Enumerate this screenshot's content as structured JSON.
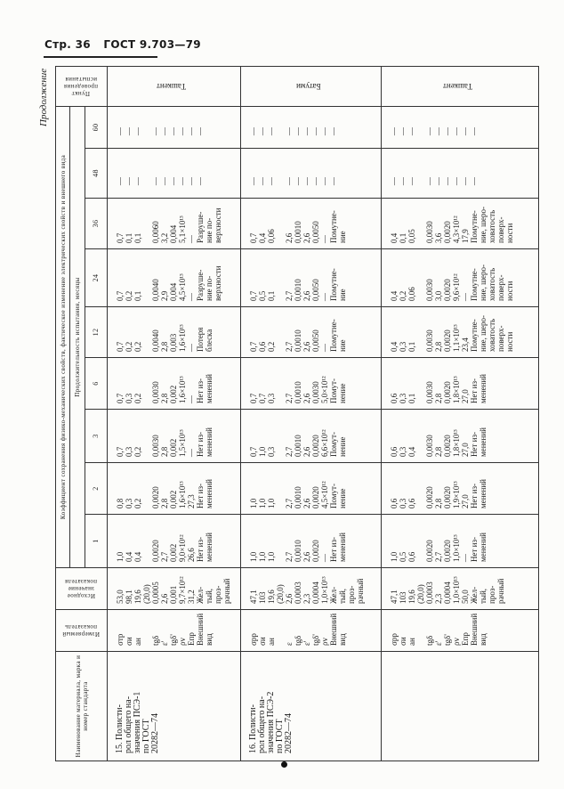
{
  "page_header": {
    "page": "Стр. 36",
    "standard": "ГОСТ 9.703—79"
  },
  "continuation_label": "Продолжение",
  "table": {
    "headers": {
      "name": "Наименование материала, марка и номер стандарта",
      "indicator": "Измеряемый показатель",
      "initial": "Исходное значение показателя",
      "coefficient": "Коэффициент сохранения физико-механических свойств, фактическое изменение электрических свойств и внешнего вида",
      "duration": "Продолжительность испытания, месяцы",
      "months": [
        "1",
        "2",
        "3",
        "6",
        "12",
        "24",
        "36",
        "48",
        "60"
      ],
      "location": "Пункт проведения испытания"
    },
    "rows": [
      {
        "name": [
          "15. Полисти-",
          "рол общего на-",
          "значения ПСЭ-1",
          "по ГОСТ",
          "20282—74"
        ],
        "indicators": [
          "σтр",
          "σи",
          "aн",
          "",
          "tgδ",
          "ε'",
          "tgδ'",
          "ρv",
          "Eпр",
          "Внешний",
          "вид"
        ],
        "initial": [
          "53,0",
          "98,1",
          "19,6",
          "(20,0)",
          "0,0005",
          "2,6",
          "0,001",
          "9,7×10¹²",
          "31,2",
          "Жел-",
          "тый,",
          "проз-",
          "рачный"
        ],
        "values": [
          [
            "1,0",
            "0,4",
            "0,4",
            "",
            "0,0020",
            "2,7",
            "0,002",
            "9,0×10¹²",
            "26,6",
            "Нет из-",
            "менений"
          ],
          [
            "0,8",
            "0,3",
            "0,2",
            "",
            "0,0020",
            "2,8",
            "0,002",
            "1,6×10¹³",
            "27,3",
            "Нет из-",
            "менений"
          ],
          [
            "0,7",
            "0,3",
            "0,2",
            "",
            "0,0030",
            "2,8",
            "0,002",
            "1,5×10¹³",
            "—",
            "Нет из-",
            "менений"
          ],
          [
            "0,7",
            "0,3",
            "0,2",
            "",
            "0,0030",
            "2,8",
            "0,002",
            "1,6×10¹³",
            "—",
            "Нет из-",
            "менений"
          ],
          [
            "0,7",
            "0,2",
            "0,2",
            "",
            "0,0040",
            "2,8",
            "0,003",
            "1,6×10¹³",
            "—",
            "Потеря",
            "блеска"
          ],
          [
            "0,7",
            "0,2",
            "0,1",
            "",
            "0,0040",
            "2,9",
            "0,004",
            "4,5×10¹³",
            "—",
            "Разруше-",
            "ние по-",
            "верхности"
          ],
          [
            "0,7",
            "0,1",
            "0,1",
            "",
            "0,0060",
            "3,2",
            "0,004",
            "5,1×10¹³",
            "—",
            "Разруше-",
            "ние по-",
            "верхности"
          ],
          [
            "—",
            "—",
            "—",
            "",
            "—",
            "—",
            "—",
            "—",
            "—",
            "—"
          ],
          [
            "—",
            "—",
            "—",
            "",
            "—",
            "—",
            "—",
            "—",
            "—",
            "—"
          ]
        ],
        "location": "Ташкент"
      },
      {
        "name": [
          "16. Полисти-",
          "рол общего на-",
          "значения ПСЭ-2",
          "по ГОСТ",
          "20282—74"
        ],
        "indicators": [
          "σрр",
          "σи",
          "aн",
          "",
          "ε",
          "tgδ",
          "ε'",
          "tgδ'",
          "ρv",
          "Внешний",
          "вид"
        ],
        "initial": [
          "47,1",
          "103",
          "19,6",
          "(20,0)",
          "2,6",
          "0,0003",
          "2,3",
          "0,0004",
          "1,0×10¹³",
          "Жел-",
          "тый,",
          "проз-",
          "рачный"
        ],
        "values": [
          [
            "1,0",
            "1,0",
            "1,0",
            "",
            "2,7",
            "0,0010",
            "2,6",
            "0,0020",
            "—",
            "Нет из-",
            "менений"
          ],
          [
            "1,0",
            "1,0",
            "1,0",
            "",
            "2,7",
            "0,0010",
            "2,6",
            "0,0020",
            "4,5×10¹²",
            "Помут-",
            "нение"
          ],
          [
            "0,7",
            "1,0",
            "0,3",
            "",
            "2,7",
            "0,0010",
            "2,6",
            "0,0020",
            "6,6×10¹²",
            "Помут-",
            "нение"
          ],
          [
            "0,7",
            "0,7",
            "0,3",
            "",
            "2,7",
            "0,0010",
            "2,6",
            "0,0030",
            "5,0×10¹²",
            "Помут-",
            "нение"
          ],
          [
            "0,7",
            "0,6",
            "0,2",
            "",
            "2,7",
            "0,0010",
            "2,6",
            "0,0050",
            "—",
            "Помутне-",
            "ние"
          ],
          [
            "0,7",
            "0,5",
            "0,1",
            "",
            "2,7",
            "0,0010",
            "2,6",
            "0,0050",
            "—",
            "Помутне-",
            "ние"
          ],
          [
            "0,7",
            "0,4",
            "0,06",
            "",
            "2,6",
            "0,0010",
            "2,6",
            "0,0050",
            "—",
            "Помутне-",
            "ние"
          ],
          [
            "—",
            "—",
            "—",
            "",
            "—",
            "—",
            "—",
            "—",
            "—",
            "—"
          ],
          [
            "—",
            "—",
            "—",
            "",
            "—",
            "—",
            "—",
            "—",
            "—",
            "—"
          ]
        ],
        "location": "Батуми"
      },
      {
        "name": [],
        "indicators": [
          "σрр",
          "σи",
          "aн",
          "",
          "tgδ",
          "ε'",
          "tgδ'",
          "ρv",
          "Eпр",
          "Внешний",
          "вид"
        ],
        "initial": [
          "47,1",
          "103",
          "19,6",
          "(20,0)",
          "0,0003",
          "2,3",
          "0,0004",
          "1,0×10¹³",
          "50,0",
          "Жел-",
          "тый,",
          "проз-",
          "рачный"
        ],
        "values": [
          [
            "1,0",
            "0,5",
            "0,6",
            "",
            "0,0020",
            "2,7",
            "0,0020",
            "1,0×10¹³",
            "—",
            "Нет из-",
            "менений"
          ],
          [
            "0,6",
            "0,3",
            "0,6",
            "",
            "0,0020",
            "2,8",
            "0,0020",
            "1,9×10¹³",
            "27,0",
            "Нет из-",
            "менений"
          ],
          [
            "0,6",
            "0,3",
            "0,4",
            "",
            "0,0030",
            "2,8",
            "0,0020",
            "1,8×10¹³",
            "27,0",
            "Нет из-",
            "менений"
          ],
          [
            "0,6",
            "0,3",
            "0,1",
            "",
            "0,0030",
            "2,8",
            "0,0020",
            "1,8×10¹³",
            "27,0",
            "Нет из-",
            "менений"
          ],
          [
            "0,4",
            "0,3",
            "0,1",
            "",
            "0,0030",
            "2,8",
            "0,0020",
            "1,1×10¹³",
            "23,4",
            "Помутне-",
            "ние, шеро-",
            "ховатость",
            "поверх-",
            "ности"
          ],
          [
            "0,4",
            "0,2",
            "0,06",
            "",
            "0,0030",
            "3,0",
            "0,0020",
            "9,6×10¹²",
            "—",
            "Помутне-",
            "ние, шеро-",
            "ховатость",
            "поверх-",
            "ности"
          ],
          [
            "0,4",
            "0,1",
            "0,05",
            "",
            "0,0030",
            "3,6",
            "0,0020",
            "4,3×10¹²",
            "17,9",
            "Помутне-",
            "ние, шеро-",
            "ховатость",
            "поверх-",
            "ности"
          ],
          [
            "—",
            "—",
            "—",
            "",
            "—",
            "—",
            "—",
            "—",
            "—",
            "—"
          ],
          [
            "—",
            "—",
            "—",
            "",
            "—",
            "—",
            "—",
            "—",
            "—",
            "—"
          ]
        ],
        "location": "Ташкент"
      }
    ]
  }
}
